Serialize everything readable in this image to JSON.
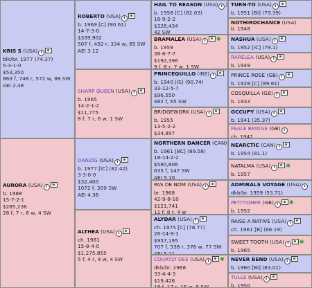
{
  "pedigree": {
    "c1": {
      "name": "KRIS S",
      "country": "(USA)",
      "details": [
        "blk/br. 1977 (74.37)",
        "5-3-1-0",
        "$53,350",
        "863 f, 748 r, 572 w, 88 SW",
        "AEI 2.48"
      ],
      "icons": [
        "i",
        "cam"
      ]
    },
    "c2": {
      "name": "AURORA",
      "country": "(USA)",
      "details": [
        "b. 1988",
        "15-7-2-1",
        "$285,236",
        "28 f, 7 r, 6 w, 4 SW"
      ],
      "icons": [
        "i",
        "cam"
      ]
    },
    "c3": {
      "name": "ROBERTO",
      "country": "(USA)",
      "details": [
        "b. 1969 [C] (90.61)",
        "14-7-3-0",
        "$339,902",
        "507 f, 452 r, 334 w, 85 SW",
        "AEI 3.12"
      ],
      "icons": [
        "i",
        "cam"
      ]
    },
    "c4": {
      "name": "SHARP QUEEN",
      "country": "(USA)",
      "details": [
        "b. 1965",
        "14-2-1-2",
        "$11,775",
        "8 f, 7 r, 6 w, 1 SW"
      ],
      "icons": [
        "i",
        "cam"
      ],
      "link": true,
      "normal": true
    },
    "c5": {
      "name": "DANZIG",
      "country": "(USA)",
      "details": [
        "b. 1977 [IC] (82.42)",
        "3-3-0-0",
        "$32,400",
        "1072 f, 200 SW",
        "AEI 4.36"
      ],
      "icons": [
        "i",
        "cam"
      ],
      "link": true,
      "normal": true
    },
    "c6": {
      "name": "ALTHEA",
      "country": "(USA)",
      "details": [
        "ch. 1981",
        "15-8-4-0",
        "$1,275,855",
        "5 f, 4 r, 4 w, 4 SW"
      ],
      "icons": [
        "i",
        "cam"
      ]
    },
    "c7": {
      "name": "HAIL TO REASON",
      "country": "(USA)",
      "details": [
        "b. 1958 [C] (82.03)",
        "18-9-2-2",
        "$328,434",
        "42 SW"
      ],
      "icons": [
        "i",
        "br"
      ]
    },
    "c8": {
      "name": "BRAMALEA",
      "country": "(USA)",
      "details": [
        "b. 1959",
        "38-8-7-7",
        "$192,396",
        "9 f, 8 r, 7 w, 1 SW"
      ],
      "icons": [
        "i",
        "cam",
        "star"
      ]
    },
    "c9": {
      "name": "PRINCEQUILLO",
      "country": "(IRE)",
      "details": [
        "b. 1940 [IS] (90.74)",
        "33-12-5-7",
        "$96,550",
        "482 f, 65 SW",
        "AEI 3.31"
      ],
      "icons": [
        "i",
        "cam"
      ]
    },
    "c10": {
      "name": "BRIDGEWORK",
      "country": "(USA)",
      "details": [
        "b. 1955",
        "13-5-2-2",
        "$34,897"
      ],
      "icons": [
        "i",
        "cam"
      ],
      "normal": true
    },
    "c11": {
      "name": "NORTHERN DANCER",
      "country": "(CAN)",
      "details": [
        "b. 1961 [BC] (89.58)",
        "18-14-2-2",
        "$580,806",
        "635 f, 147 SW",
        "AEI 5.10"
      ],
      "icons": [
        "i",
        "br"
      ]
    },
    "c12": {
      "name": "PAS DE NOM",
      "country": "(USA)",
      "details": [
        "br. 1968",
        "42-9-8-10",
        "$121,741",
        "11 f, 8 r, 4 w"
      ],
      "icons": [
        "i",
        "cam"
      ],
      "normal": true
    },
    "c13": {
      "name": "ALYDAR",
      "country": "(USA)",
      "details": [
        "ch. 1975 [C] (78.77)",
        "26-14-9-1",
        "$957,195",
        "707 f, 538 r, 376 w, 77 SW",
        "AEI 5.11"
      ],
      "icons": [
        "i",
        "cam"
      ]
    },
    "c14": {
      "name": "COURTLY DEE",
      "country": "(USA)",
      "details": [
        "dkb/br. 1968",
        "33-4-4-3",
        "$19,426",
        "18 f, 17 r, 15 w, 8 SW"
      ],
      "icons": [
        "i",
        "cam",
        "star"
      ],
      "link": true,
      "normal": true
    },
    "c15": {
      "name": "TURN-TO",
      "country": "(USA)",
      "details": [
        "b. 1951 [BI] (79.39)"
      ],
      "icons": [
        "i",
        "cam"
      ]
    },
    "c16": {
      "name": "NOTHIRDCHANCE",
      "country": "(USA)",
      "details": [
        "b. 1948"
      ],
      "icons": []
    },
    "c17": {
      "name": "NASHUA",
      "country": "(USA)",
      "details": [
        "b. 1952 [IC] (79.1)"
      ],
      "icons": [
        "i",
        "cam"
      ]
    },
    "c18": {
      "name": "RARELEA",
      "country": "(USA)",
      "details": [
        "b. 1949"
      ],
      "icons": [
        "i",
        "cam"
      ],
      "link": true,
      "normal": true
    },
    "c19": {
      "name": "PRINCE ROSE",
      "country": "(GB)",
      "details": [
        "b. 1928 [C] (89.61)"
      ],
      "icons": [
        "i",
        "cam"
      ],
      "normal": true
    },
    "c20": {
      "name": "COSQUILLA",
      "country": "(GB)",
      "details": [
        "b. 1933"
      ],
      "icons": [
        "i",
        "cam"
      ],
      "normal": true
    },
    "c21": {
      "name": "OCCUPY",
      "country": "(USA)",
      "details": [
        "b. 1941 (35.37)"
      ],
      "icons": [
        "i",
        "cam"
      ]
    },
    "c22": {
      "name": "FEALE BRIDGE",
      "country": "(GB)",
      "details": [
        "ch. 1942"
      ],
      "icons": [
        "i"
      ],
      "link": true,
      "normal": true
    },
    "c23": {
      "name": "NEARCTIC",
      "country": "(CAN)",
      "details": [
        "b. 1954 (81.1)"
      ],
      "icons": [
        "i",
        "cam"
      ]
    },
    "c24": {
      "name": "NATALMA",
      "country": "(USA)",
      "details": [
        "b. 1957"
      ],
      "icons": [
        "i",
        "cam",
        "star"
      ],
      "normal": true
    },
    "c25": {
      "name": "ADMIRALS VOYAGE",
      "country": "(USA)",
      "details": [
        "dkb/br. 1959 (53.71)"
      ],
      "icons": [
        "i"
      ]
    },
    "c26": {
      "name": "PETITIONER",
      "country": "(GB)",
      "details": [
        "b. 1952"
      ],
      "icons": [
        "i",
        "cam",
        "star"
      ],
      "link": true,
      "normal": true
    },
    "c27": {
      "name": "RAISE A NATIVE",
      "country": "(USA)",
      "details": [
        "ch. 1961 [B] (66.19)"
      ],
      "icons": [
        "i",
        "cam"
      ],
      "normal": true
    },
    "c28": {
      "name": "SWEET TOOTH",
      "country": "(USA)",
      "details": [
        "b. 1965"
      ],
      "icons": [
        "i",
        "cam",
        "star"
      ],
      "normal": true
    },
    "c29": {
      "name": "NEVER BEND",
      "country": "(USA)",
      "details": [
        "b. 1960 [BI] (83.01)"
      ],
      "icons": [
        "i",
        "cam"
      ]
    },
    "c30": {
      "name": "TULLE",
      "country": "(USA)",
      "details": [
        "b. 1950"
      ],
      "icons": [
        "i",
        "cam"
      ],
      "link": true,
      "normal": true
    }
  },
  "colors": {
    "male": "#c9cbf2",
    "female": "#f2c8cd",
    "link": "#6a3fb0"
  }
}
